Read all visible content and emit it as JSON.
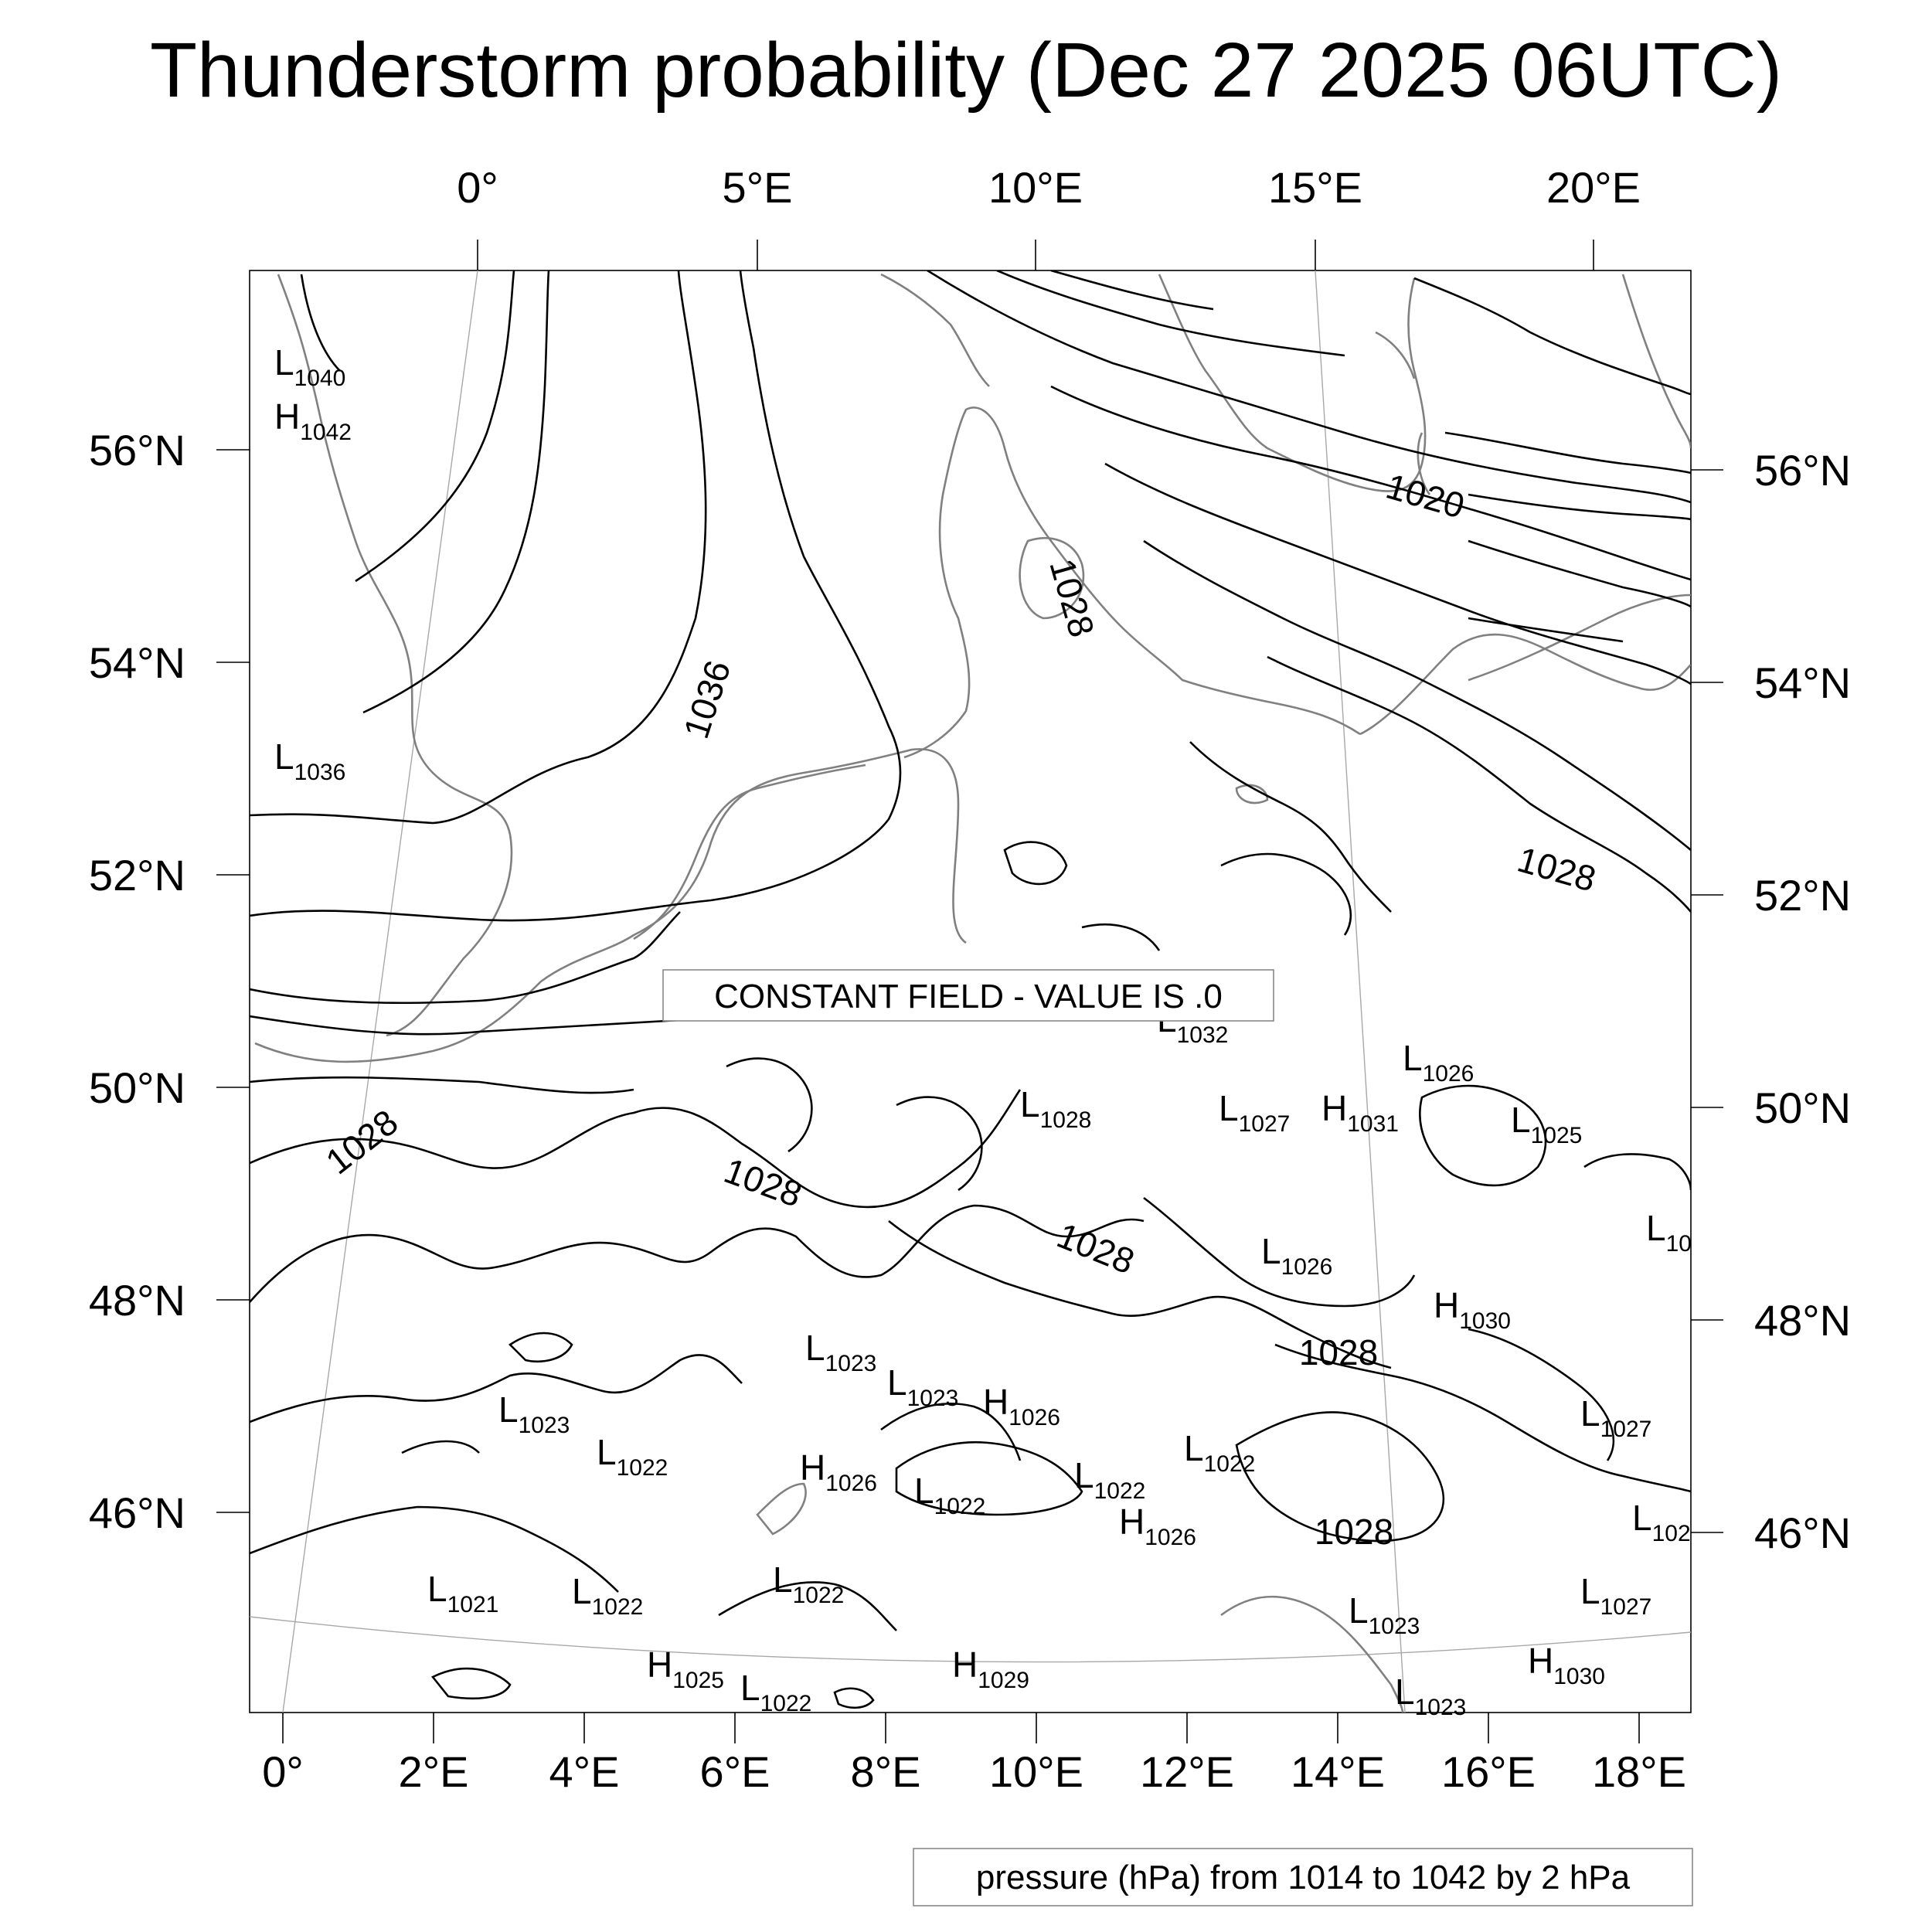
{
  "title": "Thunderstorm probability (Dec 27 2025 06UTC)",
  "constant_field_label": "CONSTANT FIELD - VALUE IS .0",
  "footer_label": "pressure (hPa) from 1014 to 1042 by 2 hPa",
  "axes": {
    "top_lon_labels": [
      "0°",
      "5°E",
      "10°E",
      "15°E",
      "20°E"
    ],
    "bottom_lon_labels": [
      "0°",
      "2°E",
      "4°E",
      "6°E",
      "8°E",
      "10°E",
      "12°E",
      "14°E",
      "16°E",
      "18°E"
    ],
    "left_lat_labels": [
      "56°N",
      "54°N",
      "52°N",
      "50°N",
      "48°N",
      "46°N"
    ],
    "right_lat_labels": [
      "56°N",
      "54°N",
      "52°N",
      "50°N",
      "48°N",
      "46°N"
    ]
  },
  "contour_labels": [
    "1036",
    "1028",
    "1020",
    "1028",
    "1028",
    "1028",
    "1028",
    "1028",
    "1028"
  ],
  "pressure_centers": [
    {
      "type": "L",
      "value": "1040"
    },
    {
      "type": "H",
      "value": "1042"
    },
    {
      "type": "L",
      "value": "1036"
    },
    {
      "type": "L",
      "value": "1032"
    },
    {
      "type": "L",
      "value": "1026"
    },
    {
      "type": "L",
      "value": "1028"
    },
    {
      "type": "L",
      "value": "1027"
    },
    {
      "type": "H",
      "value": "1031"
    },
    {
      "type": "L",
      "value": "1025"
    },
    {
      "type": "L",
      "value": "10"
    },
    {
      "type": "L",
      "value": "1026"
    },
    {
      "type": "H",
      "value": "1030"
    },
    {
      "type": "L",
      "value": "1023"
    },
    {
      "type": "L",
      "value": "1023"
    },
    {
      "type": "H",
      "value": "1026"
    },
    {
      "type": "L",
      "value": "1023"
    },
    {
      "type": "L",
      "value": "1022"
    },
    {
      "type": "L",
      "value": "1027"
    },
    {
      "type": "H",
      "value": "1026"
    },
    {
      "type": "L",
      "value": "1022"
    },
    {
      "type": "L",
      "value": "1022"
    },
    {
      "type": "L",
      "value": "1022"
    },
    {
      "type": "H",
      "value": "1026"
    },
    {
      "type": "L",
      "value": "102"
    },
    {
      "type": "L",
      "value": "1021"
    },
    {
      "type": "L",
      "value": "1022"
    },
    {
      "type": "L",
      "value": "1022"
    },
    {
      "type": "L",
      "value": "1023"
    },
    {
      "type": "L",
      "value": "1027"
    },
    {
      "type": "H",
      "value": "1025"
    },
    {
      "type": "L",
      "value": "1022"
    },
    {
      "type": "H",
      "value": "1029"
    },
    {
      "type": "H",
      "value": "1030"
    },
    {
      "type": "L",
      "value": "1023"
    }
  ]
}
